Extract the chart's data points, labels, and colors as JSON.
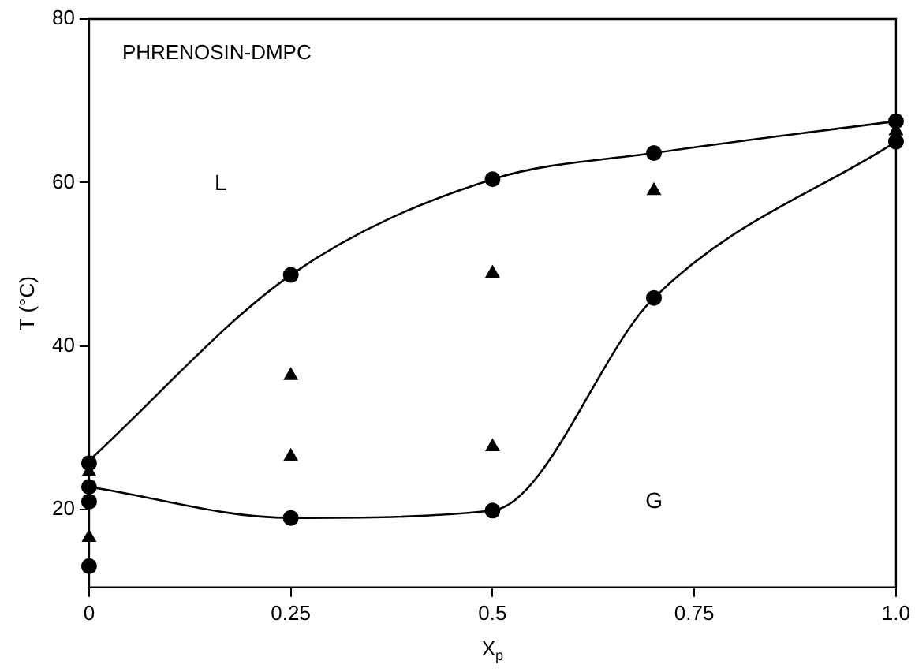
{
  "chart_data": {
    "type": "scatter",
    "title": "PHRENOSIN-DMPC",
    "xlabel": "X$_{p}$",
    "ylabel": "T (°C)",
    "xlim": [
      0,
      1
    ],
    "xticks": [
      0,
      0.25,
      0.5,
      0.75,
      {
        "value": 1,
        "label": "1.0"
      }
    ],
    "ylim": [
      10.5,
      80
    ],
    "yticks": [
      20,
      40,
      60,
      80
    ],
    "grid": false,
    "legend": false,
    "annotations": [
      "L",
      "G"
    ],
    "series": [
      {
        "type": "line",
        "marker": "none",
        "color": "#000000",
        "x": [
          0,
          0.25,
          0.5,
          0.7,
          1
        ],
        "values": [
          26,
          48.7,
          60.4,
          63.6,
          67.5
        ]
      },
      {
        "type": "line",
        "marker": "none",
        "color": "#000000",
        "x": [
          0,
          0.25,
          0.5,
          0.7,
          1
        ],
        "values": [
          22.8,
          19,
          19.9,
          45.9,
          65
        ]
      },
      {
        "type": "scatter",
        "marker": "circle",
        "color": "#000000",
        "x": [
          0,
          0,
          0,
          0,
          0.25,
          0.25,
          0.5,
          0.5,
          0.7,
          0.7,
          1,
          1
        ],
        "values": [
          25.7,
          22.8,
          21,
          13.1,
          48.7,
          19,
          60.4,
          19.9,
          63.6,
          45.9,
          67.5,
          65
        ]
      },
      {
        "type": "scatter",
        "marker": "triangle",
        "color": "#000000",
        "x": [
          0,
          0,
          0.25,
          0.25,
          0.5,
          0.5,
          0.7,
          1
        ],
        "values": [
          24.6,
          16.6,
          36.4,
          26.5,
          48.9,
          27.7,
          59,
          66.3
        ]
      }
    ]
  }
}
